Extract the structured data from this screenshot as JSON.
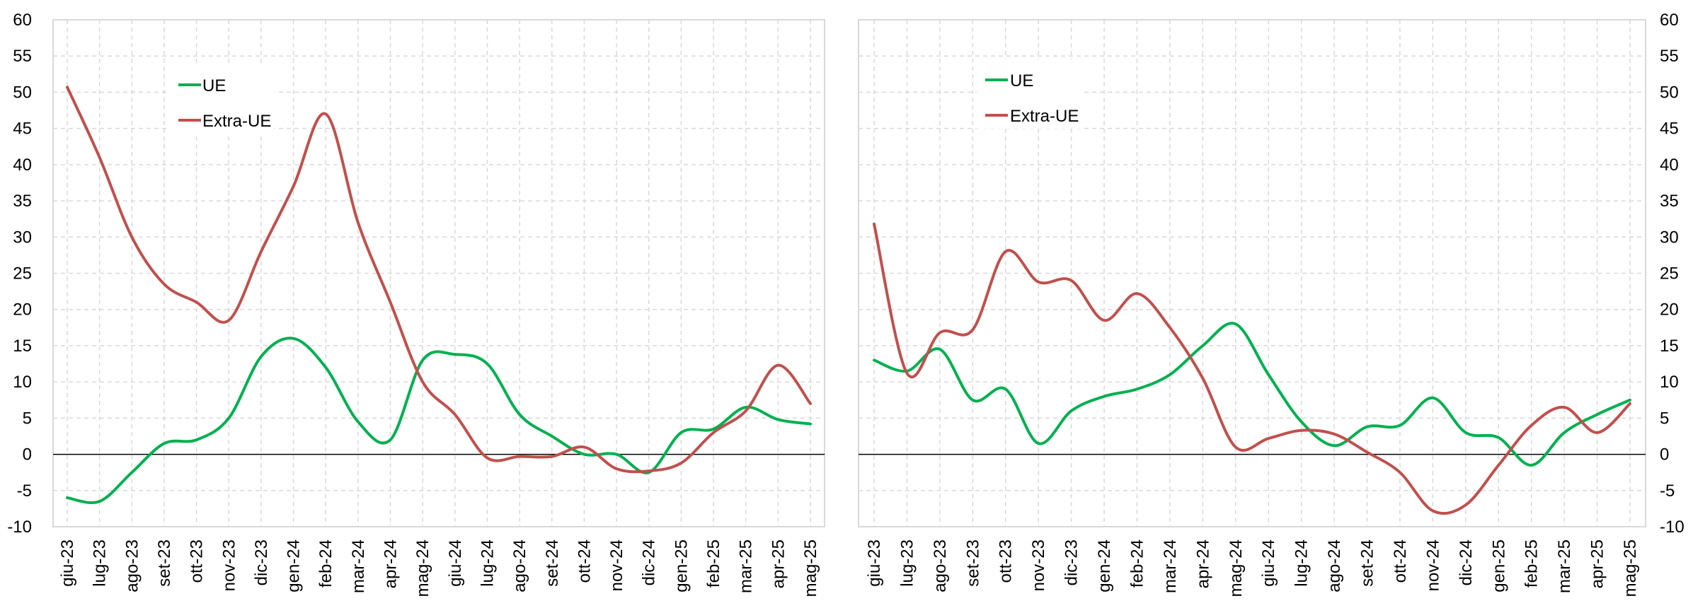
{
  "chart_data": [
    {
      "type": "line",
      "title": "",
      "xlabel": "",
      "ylabel": "",
      "ylim": [
        -10,
        60
      ],
      "yticks": [
        60,
        55,
        50,
        45,
        40,
        35,
        30,
        25,
        20,
        15,
        10,
        5,
        0,
        -5,
        -10
      ],
      "grid": true,
      "legend_position": "top-left",
      "categories": [
        "giu-23",
        "lug-23",
        "ago-23",
        "set-23",
        "ott-23",
        "nov-23",
        "dic-23",
        "gen-24",
        "feb-24",
        "mar-24",
        "apr-24",
        "mag-24",
        "giu-24",
        "lug-24",
        "ago-24",
        "set-24",
        "ott-24",
        "nov-24",
        "dic-24",
        "gen-25",
        "feb-25",
        "mar-25",
        "apr-25",
        "mag-25"
      ],
      "series": [
        {
          "name": "UE",
          "color": "#00b050",
          "values": [
            -6,
            -6.5,
            -2.5,
            1.5,
            2,
            5,
            13.5,
            16,
            12,
            4.5,
            2,
            13,
            13.8,
            12.5,
            5.5,
            2.5,
            0,
            0,
            -2.5,
            3,
            3.5,
            6.5,
            4.8,
            4.2
          ]
        },
        {
          "name": "Extra-UE",
          "color": "#c0504d",
          "values": [
            50.7,
            41,
            30,
            23.5,
            21,
            18.5,
            28,
            37,
            47,
            32,
            21,
            10,
            5.5,
            -0.5,
            -0.3,
            -0.3,
            1,
            -2,
            -2.3,
            -1.2,
            3,
            6,
            12.3,
            7
          ]
        }
      ]
    },
    {
      "type": "line",
      "title": "",
      "xlabel": "",
      "ylabel": "",
      "ylim": [
        -10,
        60
      ],
      "yticks": [
        60,
        55,
        50,
        45,
        40,
        35,
        30,
        25,
        20,
        15,
        10,
        5,
        0,
        -5,
        -10
      ],
      "grid": true,
      "legend_position": "top-left",
      "categories": [
        "giu-23",
        "lug-23",
        "ago-23",
        "set-23",
        "ott-23",
        "nov-23",
        "dic-23",
        "gen-24",
        "feb-24",
        "mar-24",
        "apr-24",
        "mag-24",
        "giu-24",
        "lug-24",
        "ago-24",
        "set-24",
        "ott-24",
        "nov-24",
        "dic-24",
        "gen-25",
        "feb-25",
        "mar-25",
        "apr-25",
        "mag-25"
      ],
      "series": [
        {
          "name": "UE",
          "color": "#00b050",
          "values": [
            13,
            11.5,
            14.5,
            7.5,
            9,
            1.5,
            6,
            8,
            9,
            11,
            15,
            18,
            11,
            4.5,
            1.2,
            3.8,
            4,
            7.8,
            3,
            2.3,
            -1.5,
            3,
            5.5,
            7.5
          ]
        },
        {
          "name": "Extra-UE",
          "color": "#c0504d",
          "values": [
            31.8,
            11.2,
            16.8,
            17.2,
            28,
            23.8,
            24,
            18.5,
            22.2,
            17.5,
            10.5,
            1,
            2.2,
            3.3,
            2.8,
            0.3,
            -2.5,
            -7.8,
            -7,
            -1.5,
            4,
            6.5,
            3,
            7
          ]
        }
      ]
    }
  ]
}
